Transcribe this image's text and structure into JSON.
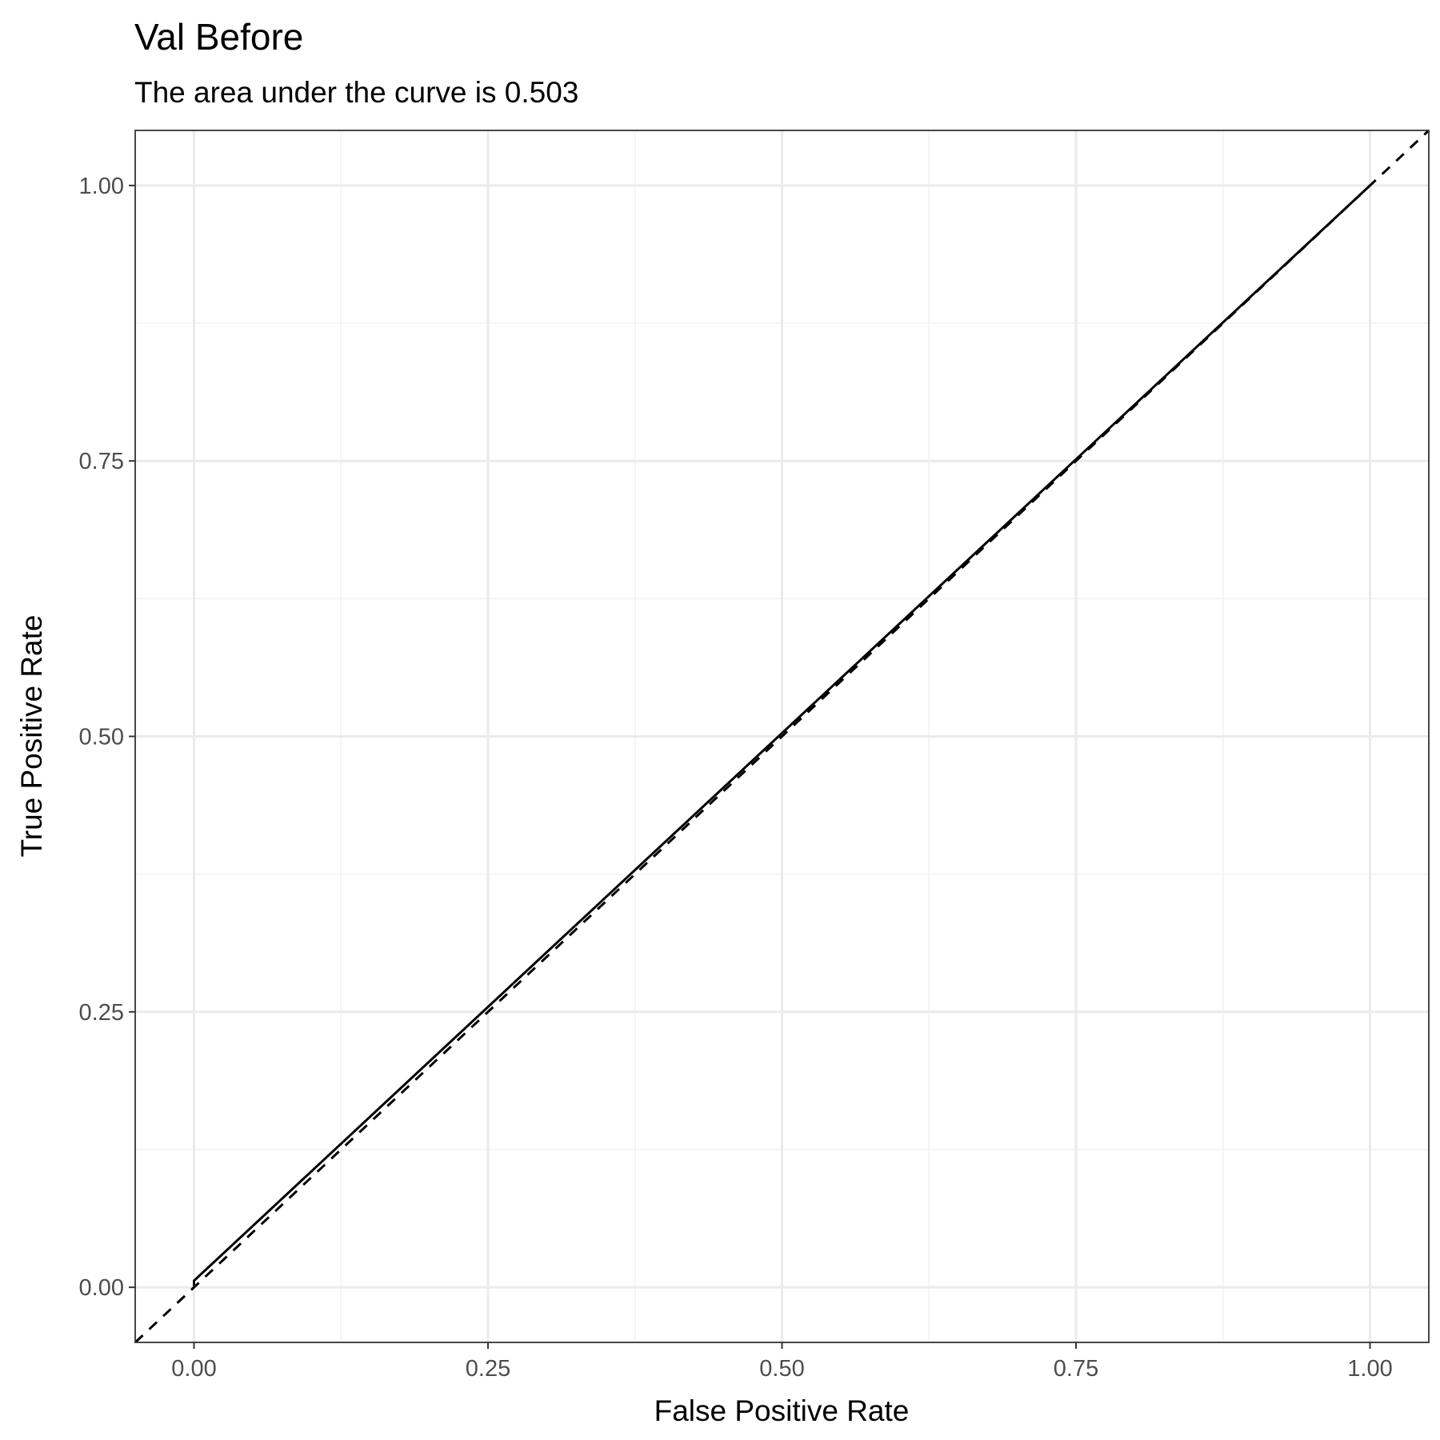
{
  "chart_data": {
    "type": "line",
    "title": "Val Before",
    "subtitle": "The area under the curve is 0.503",
    "xlabel": "False Positive Rate",
    "ylabel": "True Positive Rate",
    "xlim": [
      -0.05,
      1.05
    ],
    "ylim": [
      -0.05,
      1.05
    ],
    "x_ticks": [
      0.0,
      0.25,
      0.5,
      0.75,
      1.0
    ],
    "x_tick_labels": [
      "0.00",
      "0.25",
      "0.50",
      "0.75",
      "1.00"
    ],
    "y_ticks": [
      0.0,
      0.25,
      0.5,
      0.75,
      1.0
    ],
    "y_tick_labels": [
      "0.00",
      "0.25",
      "0.50",
      "0.75",
      "1.00"
    ],
    "x_minor_ticks": [
      0.125,
      0.375,
      0.625,
      0.875
    ],
    "y_minor_ticks": [
      0.125,
      0.375,
      0.625,
      0.875
    ],
    "grid": true,
    "series": [
      {
        "style": "solid",
        "color": "#000000",
        "x": [
          0.0,
          0.0,
          1.0
        ],
        "y": [
          0.0,
          0.006,
          1.0
        ]
      },
      {
        "style": "dashed",
        "color": "#000000",
        "x": [
          -0.05,
          1.05
        ],
        "y": [
          -0.05,
          1.05
        ]
      }
    ]
  }
}
